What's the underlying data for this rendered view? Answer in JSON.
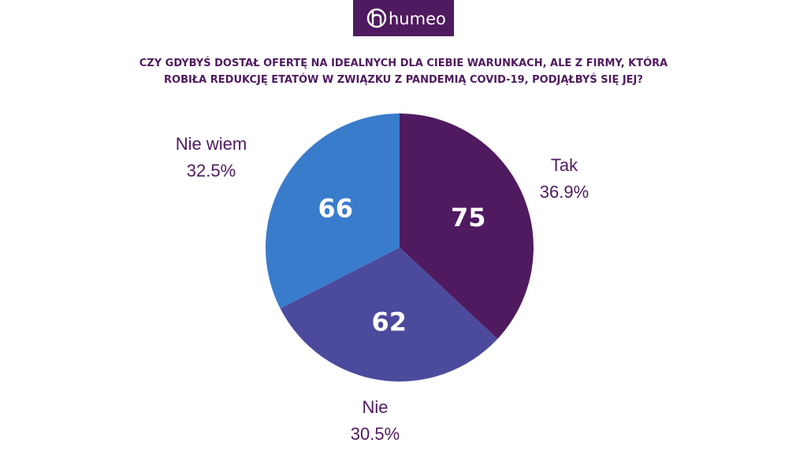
{
  "brand": {
    "logo_text": "humeo",
    "color": "#4f1a60"
  },
  "title_lines": [
    "CZY GDYBYŚ DOSTAŁ OFERTĘ NA IDEALNYCH DLA CIEBIE WARUNKACH, ALE Z FIRMY, KTÓRA",
    "ROBIŁA REDUKCJĘ ETATÓW W ZWIĄZKU Z PANDEMIĄ COVID-19, PODJĄŁBYŚ SIĘ JEJ?"
  ],
  "chart_data": {
    "type": "pie",
    "title": "CZY GDYBYŚ DOSTAŁ OFERTĘ NA IDEALNYCH DLA CIEBIE WARUNKACH, ALE Z FIRMY, KTÓRA ROBIŁA REDUKCJĘ ETATÓW W ZWIĄZKU Z PANDEMIĄ COVID-19, PODJĄŁBYŚ SIĘ JEJ?",
    "slices": [
      {
        "label": "Tak",
        "value": 75,
        "percent": "36.9%",
        "color": "#4f1a60"
      },
      {
        "label": "Nie",
        "value": 62,
        "percent": "30.5%",
        "color": "#4c4a9c"
      },
      {
        "label": "Nie wiem",
        "value": 66,
        "percent": "32.5%",
        "color": "#3a7ccc"
      }
    ],
    "start": "top, clockwise"
  }
}
